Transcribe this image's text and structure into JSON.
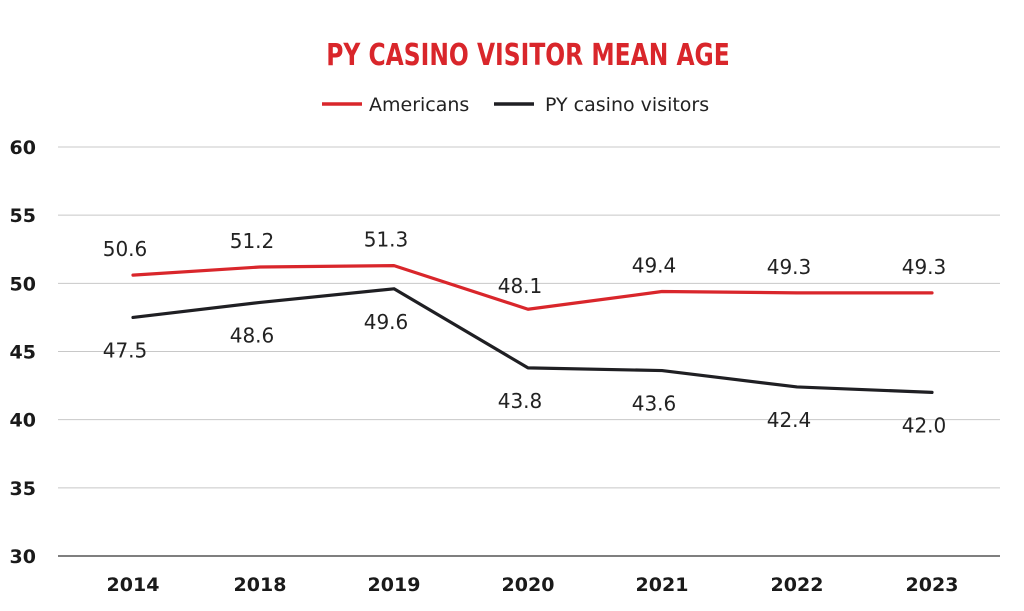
{
  "chart_data": {
    "type": "line",
    "title": "PY CASINO VISITOR MEAN AGE",
    "categories": [
      "2014",
      "2018",
      "2019",
      "2020",
      "2021",
      "2022",
      "2023"
    ],
    "series": [
      {
        "name": "Americans",
        "color": "#d9262b",
        "values": [
          50.6,
          51.2,
          51.3,
          48.1,
          49.4,
          49.3,
          49.3
        ],
        "labels": [
          "50.6",
          "51.2",
          "51.3",
          "48.1",
          "49.4",
          "49.3",
          "49.3"
        ]
      },
      {
        "name": "PY casino visitors",
        "color": "#1f1f23",
        "values": [
          47.5,
          48.6,
          49.6,
          43.8,
          43.6,
          42.4,
          42.0
        ],
        "labels": [
          "47.5",
          "48.6",
          "49.6",
          "43.8",
          "43.6",
          "42.4",
          "42.0"
        ]
      }
    ],
    "ylim": [
      30,
      60
    ],
    "yticks": [
      "30",
      "35",
      "40",
      "45",
      "50",
      "55",
      "60"
    ],
    "grid": true,
    "legend_position": "top-center",
    "title_color": "#d9262b"
  }
}
